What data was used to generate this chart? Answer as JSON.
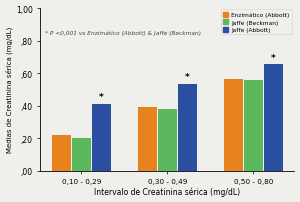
{
  "groups": [
    "0,10 - 0,29",
    "0,30 - 0,49",
    "0,50 - 0,80"
  ],
  "series": {
    "Enzimático (Abbott)": [
      0.22,
      0.39,
      0.565
    ],
    "Jaffe (Beckman)": [
      0.2,
      0.38,
      0.555
    ],
    "Jaffe (Abbott)": [
      0.41,
      0.535,
      0.655
    ]
  },
  "colors": {
    "Enzimático (Abbott)": "#E8821E",
    "Jaffe (Beckman)": "#5CB85C",
    "Jaffe (Abbott)": "#2B4FA0"
  },
  "ylabel": "Medias de Creatinina sérica (mg/dL)",
  "xlabel": "Intervalo de Creatinina sérica (mg/dL)",
  "ylim": [
    0.0,
    1.0
  ],
  "yticks": [
    0.0,
    0.2,
    0.4,
    0.6,
    0.8,
    1.0
  ],
  "ytick_labels": [
    ",00",
    ",20",
    ",40",
    ",60",
    ",80",
    "1,00"
  ],
  "annotation": "* P <0,001 vs Enzimático (Abbott) & Jaffe (Beckman)",
  "star_positions": [
    {
      "group": 0,
      "series": "Jaffe (Abbott)",
      "value": 0.41
    },
    {
      "group": 1,
      "series": "Jaffe (Abbott)",
      "value": 0.535
    },
    {
      "group": 2,
      "series": "Jaffe (Abbott)",
      "value": 0.655
    }
  ],
  "bar_width": 0.23,
  "background_color": "#EFEFEC"
}
